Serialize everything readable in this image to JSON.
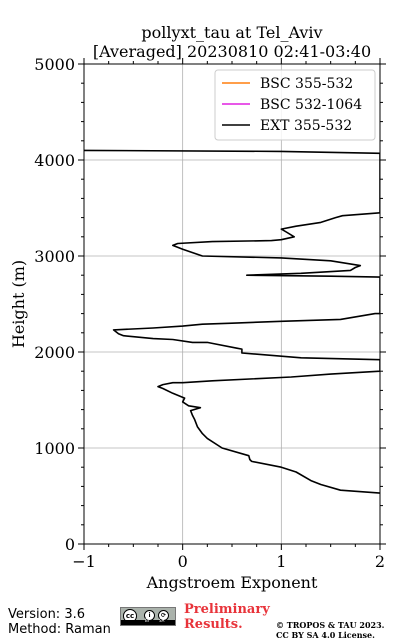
{
  "chart_data": {
    "type": "line",
    "title_line1": "pollyxt_tau at Tel_Aviv",
    "title_line2": "[Averaged] 20230810 02:41-03:40",
    "xlabel": "Angstroem Exponent",
    "ylabel": "Height (m)",
    "xlim": [
      -1,
      2
    ],
    "ylim": [
      0,
      5000
    ],
    "x_ticks": [
      -1,
      0,
      1,
      2
    ],
    "x_tick_labels": [
      "−1",
      "0",
      "1",
      "2"
    ],
    "y_ticks": [
      0,
      1000,
      2000,
      3000,
      4000,
      5000
    ],
    "y_tick_labels": [
      "0",
      "1000",
      "2000",
      "3000",
      "4000",
      "5000"
    ],
    "grid": true,
    "legend_position": "top-right",
    "series": [
      {
        "name": "BSC 355-532",
        "color": "#ff7f0e",
        "points": []
      },
      {
        "name": "BSC 532-1064",
        "color": "#e020e0",
        "points": []
      },
      {
        "name": "EXT 355-532",
        "color": "#000000",
        "points": [
          [
            2.0,
            530
          ],
          [
            1.6,
            560
          ],
          [
            1.4,
            620
          ],
          [
            1.3,
            660
          ],
          [
            1.15,
            750
          ],
          [
            1.0,
            800
          ],
          [
            0.7,
            860
          ],
          [
            0.68,
            880
          ],
          [
            0.67,
            920
          ],
          [
            0.4,
            1000
          ],
          [
            0.25,
            1100
          ],
          [
            0.2,
            1150
          ],
          [
            0.15,
            1220
          ],
          [
            0.12,
            1300
          ],
          [
            0.1,
            1340
          ],
          [
            0.08,
            1390
          ],
          [
            0.18,
            1420
          ],
          [
            0.06,
            1440
          ],
          [
            0.0,
            1480
          ],
          [
            0.02,
            1520
          ],
          [
            -0.1,
            1570
          ],
          [
            -0.2,
            1620
          ],
          [
            -0.25,
            1640
          ],
          [
            -0.2,
            1660
          ],
          [
            -0.1,
            1680
          ],
          [
            0.0,
            1680
          ],
          [
            0.3,
            1700
          ],
          [
            1.1,
            1740
          ],
          [
            1.5,
            1770
          ],
          [
            2.0,
            1800
          ],
          [
            2.0,
            1920
          ],
          [
            1.2,
            1940
          ],
          [
            0.6,
            1990
          ],
          [
            0.6,
            2030
          ],
          [
            0.55,
            2040
          ],
          [
            0.3,
            2090
          ],
          [
            0.25,
            2100
          ],
          [
            0.1,
            2100
          ],
          [
            -0.1,
            2130
          ],
          [
            -0.3,
            2140
          ],
          [
            -0.6,
            2170
          ],
          [
            -0.65,
            2190
          ],
          [
            -0.7,
            2230
          ],
          [
            -0.3,
            2250
          ],
          [
            0.0,
            2270
          ],
          [
            0.2,
            2290
          ],
          [
            0.5,
            2300
          ],
          [
            1.0,
            2320
          ],
          [
            1.6,
            2340
          ],
          [
            1.95,
            2400
          ],
          [
            2.0,
            2400
          ],
          [
            2.0,
            2780
          ],
          [
            1.5,
            2790
          ],
          [
            0.65,
            2800
          ],
          [
            1.2,
            2820
          ],
          [
            1.7,
            2850
          ],
          [
            1.75,
            2880
          ],
          [
            1.8,
            2900
          ],
          [
            1.5,
            2950
          ],
          [
            1.0,
            2980
          ],
          [
            0.2,
            3000
          ],
          [
            0.0,
            3070
          ],
          [
            -0.1,
            3110
          ],
          [
            -0.05,
            3130
          ],
          [
            0.3,
            3150
          ],
          [
            0.9,
            3160
          ],
          [
            1.0,
            3170
          ],
          [
            1.13,
            3200
          ],
          [
            1.05,
            3250
          ],
          [
            1.0,
            3280
          ],
          [
            1.15,
            3310
          ],
          [
            1.4,
            3350
          ],
          [
            1.55,
            3400
          ],
          [
            1.62,
            3420
          ],
          [
            2.0,
            3450
          ],
          [
            2.0,
            4070
          ],
          [
            1.0,
            4090
          ],
          [
            -1.0,
            4100
          ]
        ]
      }
    ]
  },
  "footer": {
    "version": "Version: 3.6",
    "method": "Method: Raman",
    "preliminary_line1": "Preliminary",
    "preliminary_line2": "Results.",
    "copyright_line1": "© TROPOS & TAU 2023.",
    "copyright_line2": "CC BY SA 4.0 License."
  },
  "license_badge": {
    "icon": "cc-by-sa-icon",
    "label_cc": "cc",
    "label_by": "BY",
    "label_sa": "SA"
  }
}
